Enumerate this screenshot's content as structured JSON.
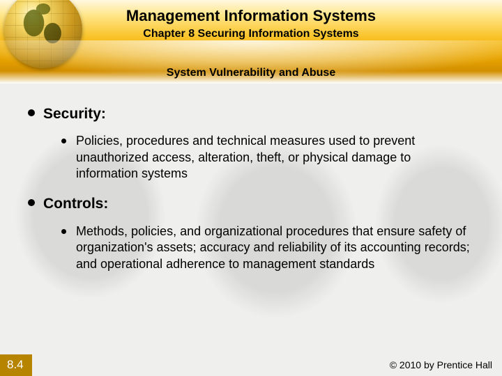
{
  "colors": {
    "header_gradient": [
      "#fff8e0",
      "#ffe68a",
      "#f9c226",
      "#e7a400",
      "#d38f00",
      "#ffffff"
    ],
    "globe_gradient": [
      "#fff8c8",
      "#f6d96a",
      "#cc9a1f",
      "#7a5a10"
    ],
    "slide_number_bg": "#b78400",
    "slide_number_fg": "#ffffff",
    "text": "#000000",
    "background_map_tint": "#d8d8d6",
    "content_bg": "#efefed"
  },
  "typography": {
    "title_fontsize": 22,
    "chapter_fontsize": 16,
    "section_fontsize": 16,
    "top_bullet_fontsize": 21,
    "sub_bullet_fontsize": 18,
    "footer_fontsize": 14,
    "font_family": "Arial"
  },
  "header": {
    "title": "Management Information Systems",
    "chapter": "Chapter 8 Securing Information Systems",
    "section": "System Vulnerability and Abuse"
  },
  "bullets": [
    {
      "label": "Security:",
      "sub": [
        "Policies, procedures and technical measures used to prevent unauthorized access, alteration, theft, or physical damage to information systems"
      ]
    },
    {
      "label": "Controls:",
      "sub": [
        "Methods, policies, and organizational procedures that ensure safety of organization's assets; accuracy and reliability of its accounting records; and operational adherence to management standards"
      ]
    }
  ],
  "footer": {
    "slide_number": "8.4",
    "copyright": "© 2010 by Prentice Hall"
  }
}
